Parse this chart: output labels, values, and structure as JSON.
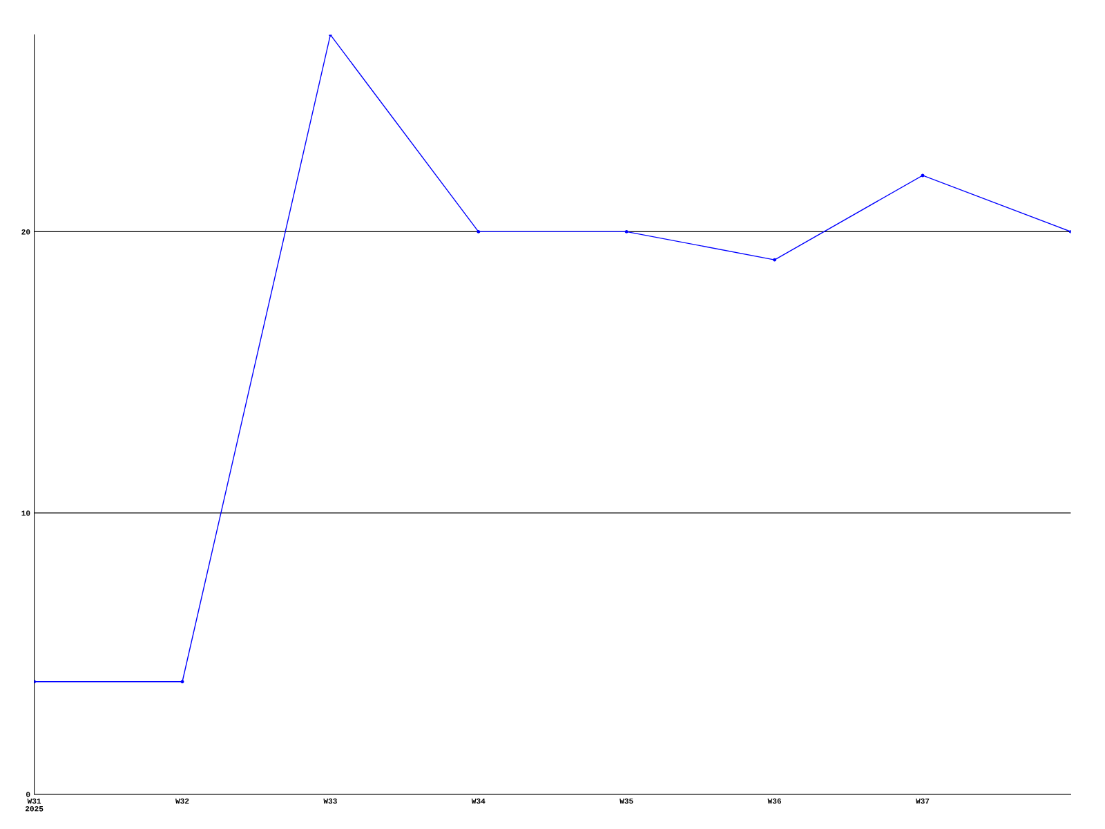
{
  "chart_data": {
    "type": "line",
    "categories": [
      "W31\n2025",
      "W32",
      "W33",
      "W34",
      "W35",
      "W36",
      "W37",
      null
    ],
    "series": [
      {
        "color": "#0000ff",
        "values": [
          4,
          4,
          27,
          20,
          20,
          19,
          22,
          20
        ]
      }
    ],
    "ylim": [
      0,
      27
    ],
    "yticks": [
      0,
      10,
      20
    ],
    "grid": "y",
    "marker": "circle",
    "line_style": "solid"
  }
}
